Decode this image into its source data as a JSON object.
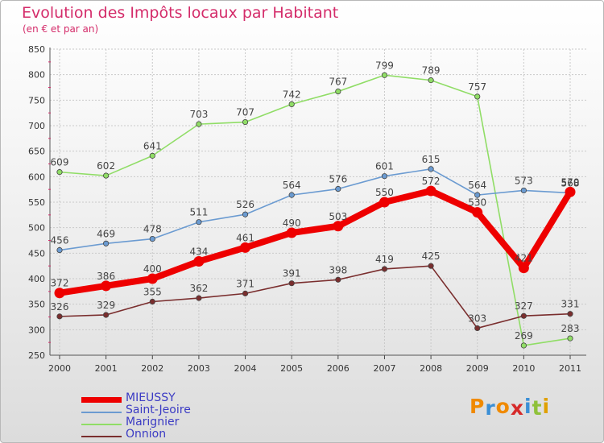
{
  "header": {
    "title": "Evolution des Impôts locaux par Habitant",
    "subtitle": "(en € et par an)"
  },
  "logo": {
    "text": "Proxiti",
    "colors": [
      "#f08a00",
      "#3b8fd6",
      "#f08a00",
      "#d62a2a",
      "#3b8fd6",
      "#8fc13a",
      "#e0a000"
    ]
  },
  "chart_data": {
    "type": "line",
    "x": [
      "2000",
      "2001",
      "2002",
      "2003",
      "2004",
      "2005",
      "2006",
      "2007",
      "2008",
      "2009",
      "2010",
      "2011"
    ],
    "ylim": [
      250,
      850
    ],
    "yticks": [
      250,
      300,
      350,
      400,
      450,
      500,
      550,
      600,
      650,
      700,
      750,
      800,
      850
    ],
    "grid": true,
    "legend_position": "bottom-left",
    "series": [
      {
        "name": "MIEUSSY",
        "color": "#ee0000",
        "values": [
          372,
          386,
          400,
          434,
          461,
          490,
          503,
          550,
          572,
          530,
          421,
          570
        ]
      },
      {
        "name": "Saint-Jeoire",
        "color": "#6b9bd1",
        "values": [
          456,
          469,
          478,
          511,
          526,
          564,
          576,
          601,
          615,
          564,
          573,
          568
        ]
      },
      {
        "name": "Marignier",
        "color": "#90dd66",
        "values": [
          609,
          602,
          641,
          703,
          707,
          742,
          767,
          799,
          789,
          757,
          269,
          283
        ]
      },
      {
        "name": "Onnion",
        "color": "#7a2e2e",
        "values": [
          326,
          329,
          355,
          362,
          371,
          391,
          398,
          419,
          425,
          303,
          327,
          331
        ]
      }
    ]
  }
}
